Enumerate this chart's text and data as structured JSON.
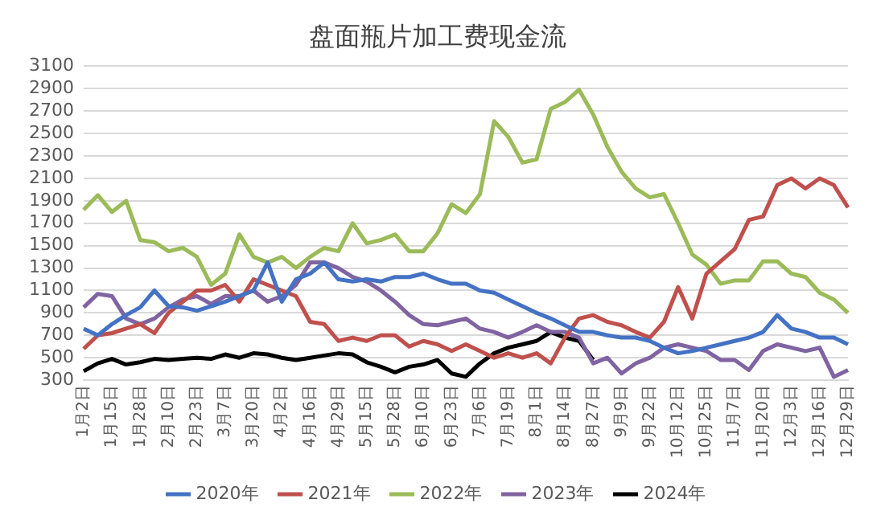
{
  "chart_data": {
    "type": "line",
    "title": "盘面瓶片加工费现金流",
    "categories": [
      "1月2日",
      null,
      "1月15日",
      null,
      "1月28日",
      null,
      "2月10日",
      null,
      "2月23日",
      null,
      "3月7日",
      null,
      "3月20日",
      null,
      "4月2日",
      null,
      "4月16日",
      null,
      "4月29日",
      null,
      "5月15日",
      null,
      "5月28日",
      null,
      "6月10日",
      null,
      "6月23日",
      null,
      "7月6日",
      null,
      "7月19日",
      null,
      "8月1日",
      null,
      "8月14日",
      null,
      "8月27日",
      null,
      "9月9日",
      null,
      "9月22日",
      null,
      "10月12日",
      null,
      "10月25日",
      null,
      "11月7日",
      null,
      "11月20日",
      null,
      "12月3日",
      null,
      "12月16日",
      null,
      "12月29日"
    ],
    "series": [
      {
        "name": "2020年",
        "color": "#4472c4",
        "values": [
          760,
          700,
          800,
          880,
          950,
          1100,
          960,
          950,
          920,
          960,
          1000,
          1050,
          1100,
          1350,
          1000,
          1200,
          1250,
          1350,
          1200,
          1180,
          1200,
          1180,
          1220,
          1220,
          1250,
          1200,
          1160,
          1160,
          1100,
          1080,
          1020,
          960,
          900,
          850,
          790,
          730,
          730,
          700,
          680,
          680,
          650,
          590,
          540,
          560,
          590,
          620,
          650,
          680,
          730,
          880,
          760,
          730,
          680,
          680,
          620
        ]
      },
      {
        "name": "2021年",
        "color": "#c0504d",
        "values": [
          580,
          700,
          720,
          760,
          800,
          720,
          900,
          1000,
          1100,
          1100,
          1150,
          1000,
          1200,
          1150,
          1100,
          1050,
          820,
          800,
          650,
          680,
          650,
          700,
          700,
          600,
          650,
          620,
          560,
          620,
          560,
          500,
          540,
          500,
          540,
          450,
          680,
          850,
          880,
          820,
          790,
          730,
          680,
          820,
          1130,
          850,
          1250,
          1360,
          1470,
          1730,
          1760,
          2040,
          2100,
          2010,
          2100,
          2040,
          1840
        ]
      },
      {
        "name": "2022年",
        "color": "#9bbb59",
        "values": [
          1820,
          1950,
          1800,
          1900,
          1550,
          1530,
          1450,
          1480,
          1400,
          1150,
          1250,
          1600,
          1400,
          1350,
          1400,
          1300,
          1400,
          1480,
          1450,
          1700,
          1520,
          1550,
          1600,
          1450,
          1450,
          1610,
          1870,
          1790,
          1960,
          2610,
          2470,
          2240,
          2270,
          2720,
          2780,
          2890,
          2670,
          2380,
          2160,
          2010,
          1930,
          1960,
          1700,
          1420,
          1330,
          1160,
          1190,
          1190,
          1360,
          1360,
          1250,
          1220,
          1080,
          1020,
          900
        ]
      },
      {
        "name": "2023年",
        "color": "#8064a2",
        "values": [
          950,
          1070,
          1050,
          850,
          800,
          850,
          950,
          1020,
          1050,
          980,
          1050,
          1050,
          1100,
          1000,
          1050,
          1150,
          1350,
          1350,
          1300,
          1220,
          1180,
          1100,
          1000,
          880,
          800,
          790,
          820,
          850,
          760,
          730,
          680,
          730,
          790,
          730,
          730,
          680,
          450,
          500,
          360,
          450,
          500,
          590,
          620,
          590,
          560,
          480,
          480,
          390,
          560,
          620,
          590,
          560,
          590,
          330,
          390
        ]
      },
      {
        "name": "2024年",
        "color": "#000000",
        "values": [
          380,
          450,
          490,
          440,
          460,
          490,
          480,
          490,
          500,
          490,
          530,
          500,
          540,
          530,
          500,
          480,
          500,
          520,
          540,
          530,
          460,
          420,
          370,
          420,
          440,
          480,
          360,
          330,
          450,
          540,
          590,
          620,
          650,
          730,
          680,
          650,
          480,
          null,
          null,
          null,
          null,
          null,
          null,
          null,
          null,
          null,
          null,
          null,
          null,
          null,
          null,
          null,
          null,
          null,
          null
        ]
      }
    ],
    "ylim": [
      300,
      3100
    ],
    "yticks": [
      300,
      500,
      700,
      900,
      1100,
      1300,
      1500,
      1700,
      1900,
      2100,
      2300,
      2500,
      2700,
      2900,
      3100
    ],
    "grid": "y",
    "legend": "bottom",
    "marker": "none",
    "line_style": "solid"
  }
}
